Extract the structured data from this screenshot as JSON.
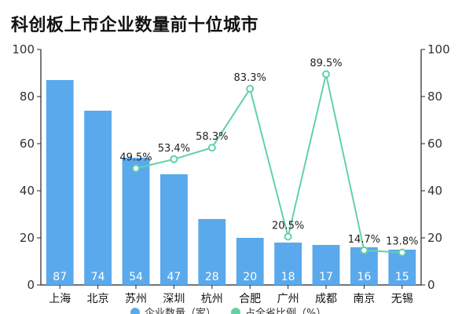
{
  "title": "科创板上市企业数量前十位城市",
  "chart_data": {
    "type": "bar",
    "title": "科创板上市企业数量前十位城市",
    "categories": [
      "上海",
      "北京",
      "苏州",
      "深圳",
      "杭州",
      "合肥",
      "广州",
      "成都",
      "南京",
      "无锡"
    ],
    "series": [
      {
        "name": "企业数量（家）",
        "type": "bar",
        "axis": "left",
        "color": "#5aa9ec",
        "values": [
          87,
          74,
          54,
          47,
          28,
          20,
          18,
          17,
          16,
          15
        ],
        "labels": [
          "87",
          "74",
          "54",
          "47",
          "28",
          "20",
          "18",
          "17",
          "16",
          "15"
        ]
      },
      {
        "name": "占全省比例（%）",
        "type": "line",
        "axis": "right",
        "color": "#62d1a6",
        "values": [
          null,
          null,
          49.5,
          53.4,
          58.3,
          83.3,
          20.5,
          89.5,
          14.7,
          13.8
        ],
        "labels": [
          "",
          "",
          "49.5%",
          "53.4%",
          "58.3%",
          "83.3%",
          "20.5%",
          "89.5%",
          "14.7%",
          "13.8%"
        ]
      }
    ],
    "ylim_left": [
      0,
      100
    ],
    "ylim_right": [
      0,
      100
    ],
    "yticks_left": [
      "0",
      "20",
      "40",
      "60",
      "80",
      "100"
    ],
    "yticks_right": [
      "0",
      "20",
      "40",
      "60",
      "80",
      "100"
    ],
    "legend_position": "bottom",
    "grid": false
  }
}
